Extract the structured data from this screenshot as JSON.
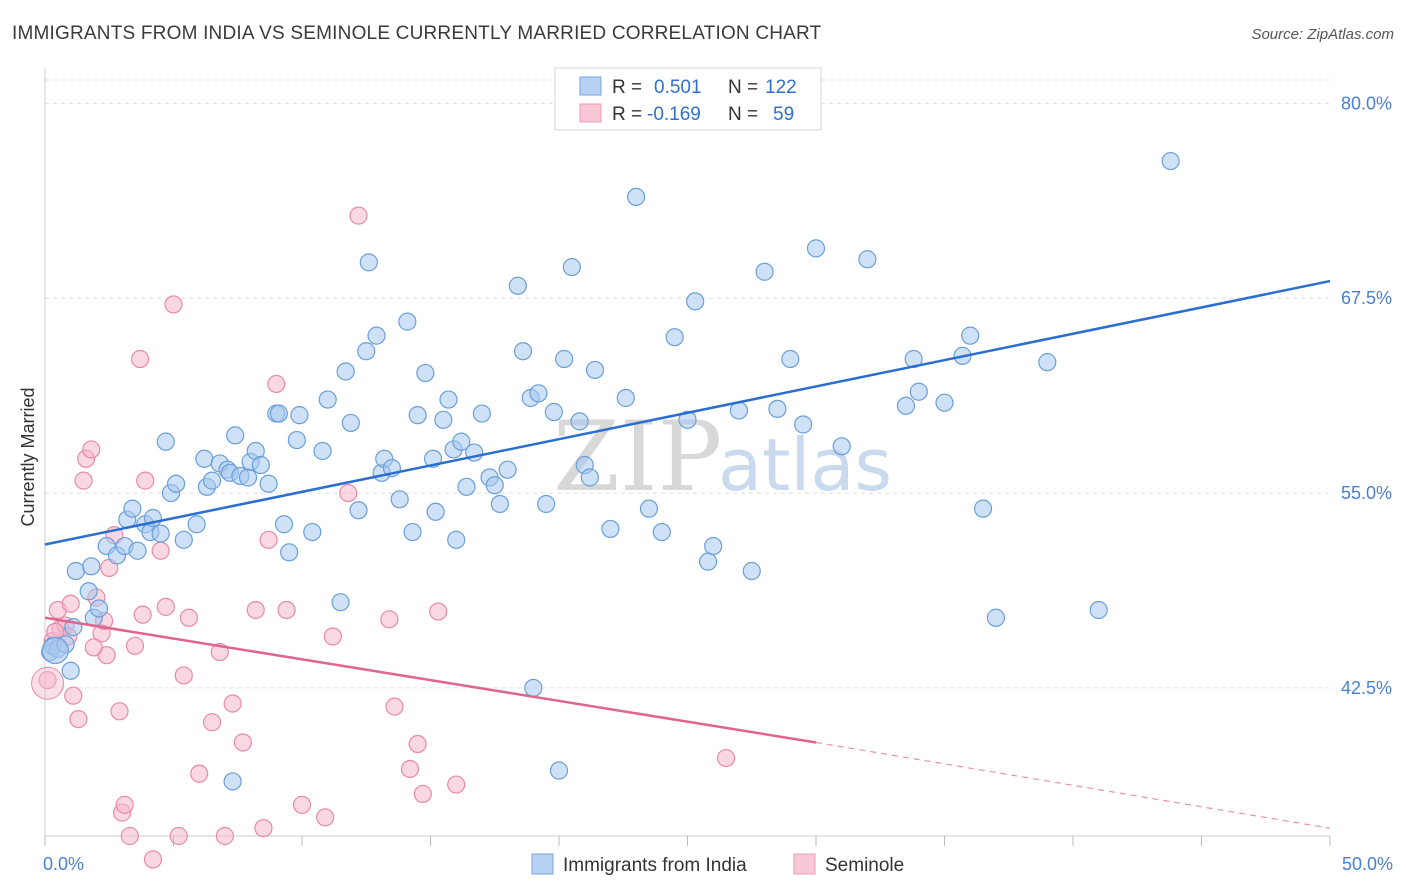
{
  "title": "IMMIGRANTS FROM INDIA VS SEMINOLE CURRENTLY MARRIED CORRELATION CHART",
  "source": "Source: ZipAtlas.com",
  "watermark": {
    "zip": "ZIP",
    "atlas": "atlas"
  },
  "colors": {
    "india_fill": "#a8c8f0",
    "india_stroke": "#6a9fd8",
    "india_line": "#2a6fcf",
    "seminole_fill": "#f6b8cc",
    "seminole_stroke": "#e88aa8",
    "seminole_line": "#e0648e",
    "grid": "#dddddd",
    "axis_text": "#4a7fd0"
  },
  "legend": {
    "rows": [
      {
        "r_label": "R =",
        "r_value": "0.501",
        "n_label": "N =",
        "n_value": "122"
      },
      {
        "r_label": "R =",
        "r_value": "-0.169",
        "n_label": "N =",
        "n_value": "59"
      }
    ]
  },
  "bottom_legend": {
    "india": "Immigrants from India",
    "seminole": "Seminole"
  },
  "chart_data": {
    "type": "scatter",
    "title": "IMMIGRANTS FROM INDIA VS SEMINOLE CURRENTLY MARRIED CORRELATION CHART",
    "xlabel": "",
    "ylabel": "Currently Married",
    "xlim": [
      0,
      50
    ],
    "ylim": [
      33,
      81.5
    ],
    "x_tick_labels": [
      "0.0%",
      "50.0%"
    ],
    "y_ticks": [
      42.5,
      55.0,
      67.5,
      80.0
    ],
    "y_tick_labels": [
      "42.5%",
      "55.0%",
      "67.5%",
      "80.0%"
    ],
    "grid": true,
    "legend_position": "top-center",
    "series": [
      {
        "name": "Immigrants from India",
        "r": 0.501,
        "n": 122,
        "trend": {
          "x": [
            0,
            50
          ],
          "y": [
            51.7,
            68.6
          ]
        },
        "points": [
          [
            0.2,
            44.8
          ],
          [
            0.3,
            45.2
          ],
          [
            0.5,
            45.0
          ],
          [
            0.8,
            45.3
          ],
          [
            1.0,
            43.6
          ],
          [
            1.1,
            46.4
          ],
          [
            1.2,
            50.0
          ],
          [
            1.7,
            48.7
          ],
          [
            1.9,
            47.0
          ],
          [
            1.8,
            50.3
          ],
          [
            2.1,
            47.6
          ],
          [
            2.4,
            51.6
          ],
          [
            2.8,
            51.0
          ],
          [
            3.1,
            51.6
          ],
          [
            3.2,
            53.3
          ],
          [
            3.4,
            54.0
          ],
          [
            3.6,
            51.3
          ],
          [
            3.9,
            53.0
          ],
          [
            4.1,
            52.5
          ],
          [
            4.2,
            53.4
          ],
          [
            4.5,
            52.4
          ],
          [
            4.7,
            58.3
          ],
          [
            4.9,
            55.0
          ],
          [
            5.1,
            55.6
          ],
          [
            5.4,
            52.0
          ],
          [
            5.9,
            53.0
          ],
          [
            6.2,
            57.2
          ],
          [
            6.3,
            55.4
          ],
          [
            6.5,
            55.8
          ],
          [
            6.8,
            56.9
          ],
          [
            7.1,
            56.5
          ],
          [
            7.2,
            56.3
          ],
          [
            7.4,
            58.7
          ],
          [
            7.6,
            56.1
          ],
          [
            7.9,
            56.0
          ],
          [
            8.0,
            57.0
          ],
          [
            8.2,
            57.7
          ],
          [
            8.4,
            56.8
          ],
          [
            8.7,
            55.6
          ],
          [
            9.0,
            60.1
          ],
          [
            9.3,
            53.0
          ],
          [
            9.5,
            51.2
          ],
          [
            9.8,
            58.4
          ],
          [
            9.9,
            60.0
          ],
          [
            10.4,
            52.5
          ],
          [
            10.8,
            57.7
          ],
          [
            11.0,
            61.0
          ],
          [
            11.5,
            48.0
          ],
          [
            11.7,
            62.8
          ],
          [
            11.9,
            59.5
          ],
          [
            12.2,
            53.9
          ],
          [
            12.5,
            64.1
          ],
          [
            12.6,
            69.8
          ],
          [
            12.9,
            65.1
          ],
          [
            13.1,
            56.3
          ],
          [
            13.2,
            57.2
          ],
          [
            13.5,
            56.6
          ],
          [
            13.8,
            54.6
          ],
          [
            14.1,
            66.0
          ],
          [
            14.3,
            52.5
          ],
          [
            14.5,
            60.0
          ],
          [
            14.8,
            62.7
          ],
          [
            15.1,
            57.2
          ],
          [
            15.2,
            53.8
          ],
          [
            15.5,
            59.7
          ],
          [
            15.7,
            61.0
          ],
          [
            15.9,
            57.8
          ],
          [
            16.0,
            52.0
          ],
          [
            16.2,
            58.3
          ],
          [
            16.4,
            55.4
          ],
          [
            16.7,
            57.6
          ],
          [
            17.0,
            60.1
          ],
          [
            17.3,
            56.0
          ],
          [
            17.5,
            55.5
          ],
          [
            17.7,
            54.3
          ],
          [
            18.0,
            56.5
          ],
          [
            18.4,
            68.3
          ],
          [
            18.6,
            64.1
          ],
          [
            18.9,
            61.1
          ],
          [
            19.2,
            61.4
          ],
          [
            19.0,
            42.5
          ],
          [
            19.5,
            54.3
          ],
          [
            19.8,
            60.2
          ],
          [
            20.0,
            37.2
          ],
          [
            20.2,
            63.6
          ],
          [
            20.5,
            69.5
          ],
          [
            20.8,
            59.6
          ],
          [
            21.0,
            56.8
          ],
          [
            21.2,
            56.0
          ],
          [
            21.4,
            62.9
          ],
          [
            22.0,
            52.7
          ],
          [
            22.6,
            61.1
          ],
          [
            23.0,
            74.0
          ],
          [
            23.5,
            54.0
          ],
          [
            24.0,
            52.5
          ],
          [
            24.5,
            65.0
          ],
          [
            25.0,
            59.7
          ],
          [
            25.3,
            67.3
          ],
          [
            25.8,
            50.6
          ],
          [
            26.0,
            51.6
          ],
          [
            27.0,
            60.3
          ],
          [
            27.5,
            50.0
          ],
          [
            28.0,
            69.2
          ],
          [
            28.5,
            60.4
          ],
          [
            29.0,
            63.6
          ],
          [
            29.5,
            59.4
          ],
          [
            30.0,
            70.7
          ],
          [
            31.0,
            58.0
          ],
          [
            32.0,
            70.0
          ],
          [
            33.5,
            60.6
          ],
          [
            33.8,
            63.6
          ],
          [
            34.0,
            61.5
          ],
          [
            35.0,
            60.8
          ],
          [
            35.7,
            63.8
          ],
          [
            36.0,
            65.1
          ],
          [
            36.5,
            54.0
          ],
          [
            37.0,
            47.0
          ],
          [
            39.0,
            63.4
          ],
          [
            43.8,
            76.3
          ],
          [
            41.0,
            47.5
          ],
          [
            7.3,
            36.5
          ],
          [
            9.1,
            60.1
          ]
        ]
      },
      {
        "name": "Seminole",
        "r": -0.169,
        "n": 59,
        "trend": {
          "x": [
            0,
            30
          ],
          "y": [
            47.0,
            39.0
          ]
        },
        "trend_dashed": {
          "x": [
            30,
            50
          ],
          "y": [
            39.0,
            33.5
          ]
        },
        "points": [
          [
            0.1,
            43.0
          ],
          [
            0.3,
            45.5
          ],
          [
            0.5,
            47.5
          ],
          [
            0.6,
            46.3
          ],
          [
            0.8,
            46.5
          ],
          [
            0.9,
            45.8
          ],
          [
            1.0,
            47.9
          ],
          [
            1.1,
            42.0
          ],
          [
            1.3,
            40.5
          ],
          [
            1.5,
            55.8
          ],
          [
            1.6,
            57.2
          ],
          [
            1.8,
            57.8
          ],
          [
            2.0,
            48.3
          ],
          [
            2.2,
            46.0
          ],
          [
            2.3,
            46.8
          ],
          [
            2.5,
            50.2
          ],
          [
            2.7,
            52.3
          ],
          [
            2.9,
            41.0
          ],
          [
            3.0,
            34.5
          ],
          [
            3.1,
            35.0
          ],
          [
            3.3,
            33.0
          ],
          [
            3.5,
            45.2
          ],
          [
            3.7,
            63.6
          ],
          [
            3.9,
            55.8
          ],
          [
            4.2,
            31.5
          ],
          [
            4.5,
            51.3
          ],
          [
            4.7,
            47.7
          ],
          [
            5.0,
            67.1
          ],
          [
            5.2,
            33.0
          ],
          [
            5.4,
            43.3
          ],
          [
            5.6,
            47.0
          ],
          [
            6.0,
            37.0
          ],
          [
            6.5,
            40.3
          ],
          [
            6.8,
            44.8
          ],
          [
            7.0,
            33.0
          ],
          [
            7.3,
            41.5
          ],
          [
            7.7,
            39.0
          ],
          [
            8.2,
            47.5
          ],
          [
            8.5,
            33.5
          ],
          [
            8.7,
            52.0
          ],
          [
            9.0,
            62.0
          ],
          [
            9.4,
            47.5
          ],
          [
            10.0,
            35.0
          ],
          [
            10.9,
            34.2
          ],
          [
            11.2,
            45.8
          ],
          [
            11.8,
            55.0
          ],
          [
            12.2,
            72.8
          ],
          [
            13.4,
            46.9
          ],
          [
            13.6,
            41.3
          ],
          [
            14.2,
            37.3
          ],
          [
            14.5,
            38.9
          ],
          [
            14.7,
            35.7
          ],
          [
            15.3,
            47.4
          ],
          [
            16.0,
            36.3
          ],
          [
            26.5,
            38.0
          ],
          [
            3.8,
            47.2
          ],
          [
            2.4,
            44.6
          ],
          [
            1.9,
            45.1
          ],
          [
            0.4,
            46.1
          ]
        ]
      }
    ]
  }
}
